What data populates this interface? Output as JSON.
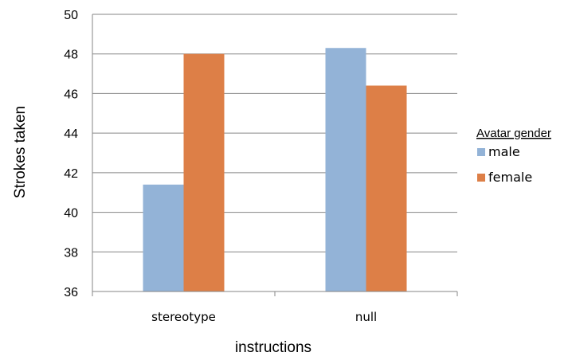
{
  "chart_data": {
    "type": "bar",
    "title": "",
    "xlabel": "instructions",
    "ylabel": "Strokes taken",
    "categories": [
      "stereotype",
      "null"
    ],
    "series": [
      {
        "name": "male",
        "values": [
          41.4,
          48.3
        ],
        "color": "#93b3d7"
      },
      {
        "name": "female",
        "values": [
          48.0,
          46.4
        ],
        "color": "#dd7f47"
      }
    ],
    "ylim": [
      36,
      50
    ],
    "yticks": [
      36,
      38,
      40,
      42,
      44,
      46,
      48,
      50
    ],
    "grid": true,
    "legend": {
      "title": "Avatar gender",
      "position": "right"
    }
  }
}
